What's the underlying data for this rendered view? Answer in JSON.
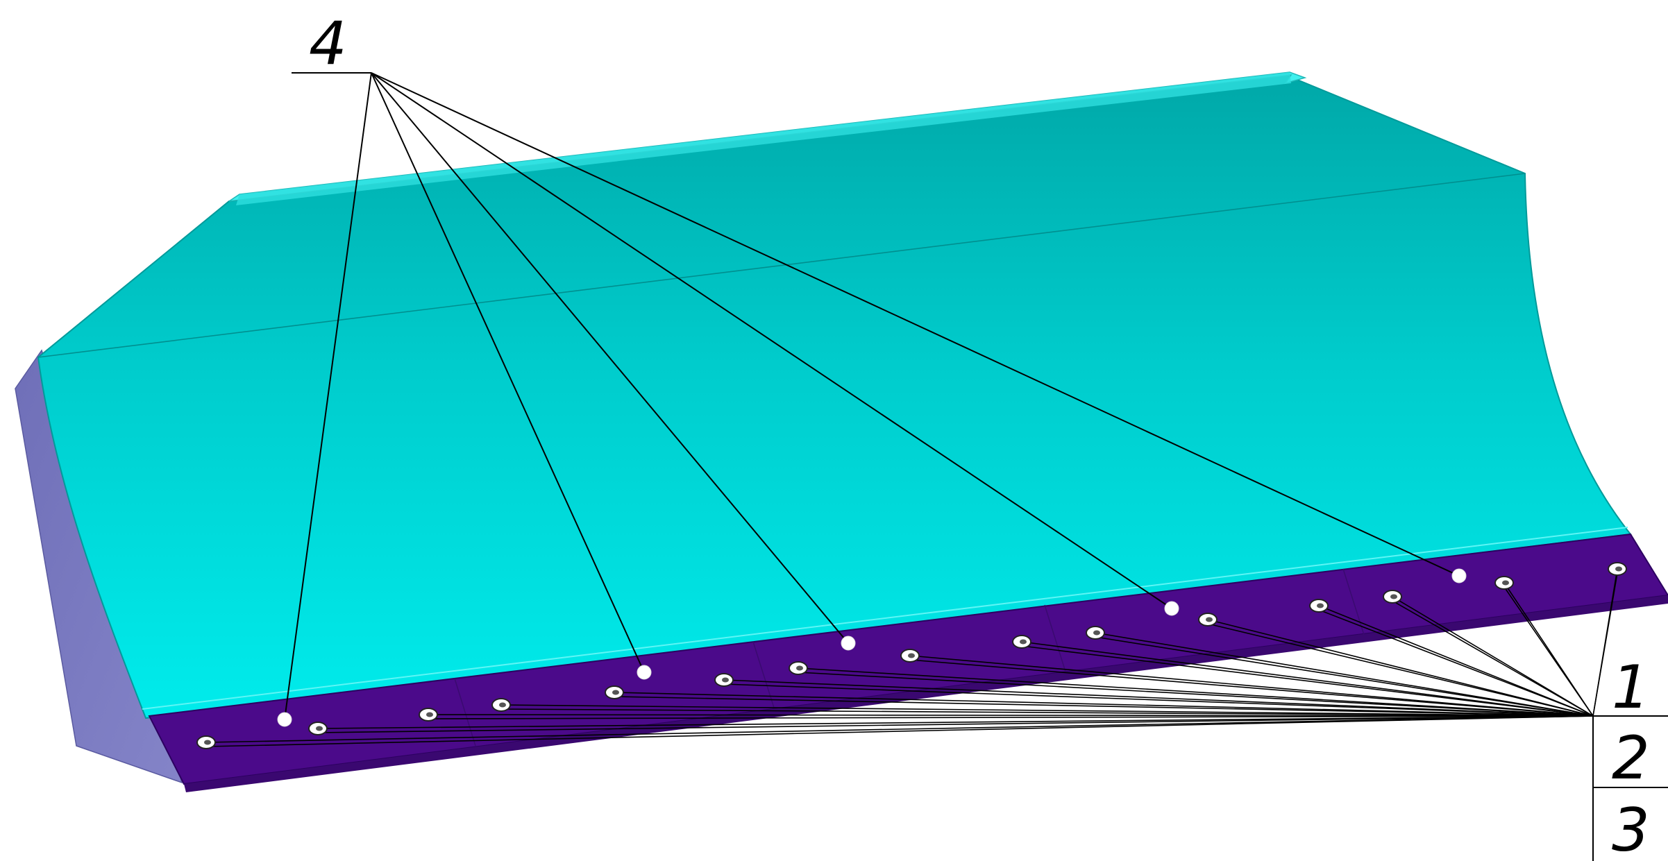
{
  "figure": {
    "callouts": {
      "c1": "1",
      "c2": "2",
      "c3": "3",
      "c4": "4"
    },
    "colors": {
      "blade_face": "#00d9d9",
      "blade_face_dark": "#00a9a9",
      "blade_top_edge": "#3ff0ee",
      "side_plate": "#7b7bbf",
      "cutting_edge": "#4b0a8a",
      "leader_line": "#000000",
      "bolt_head": "#ffffff"
    }
  }
}
